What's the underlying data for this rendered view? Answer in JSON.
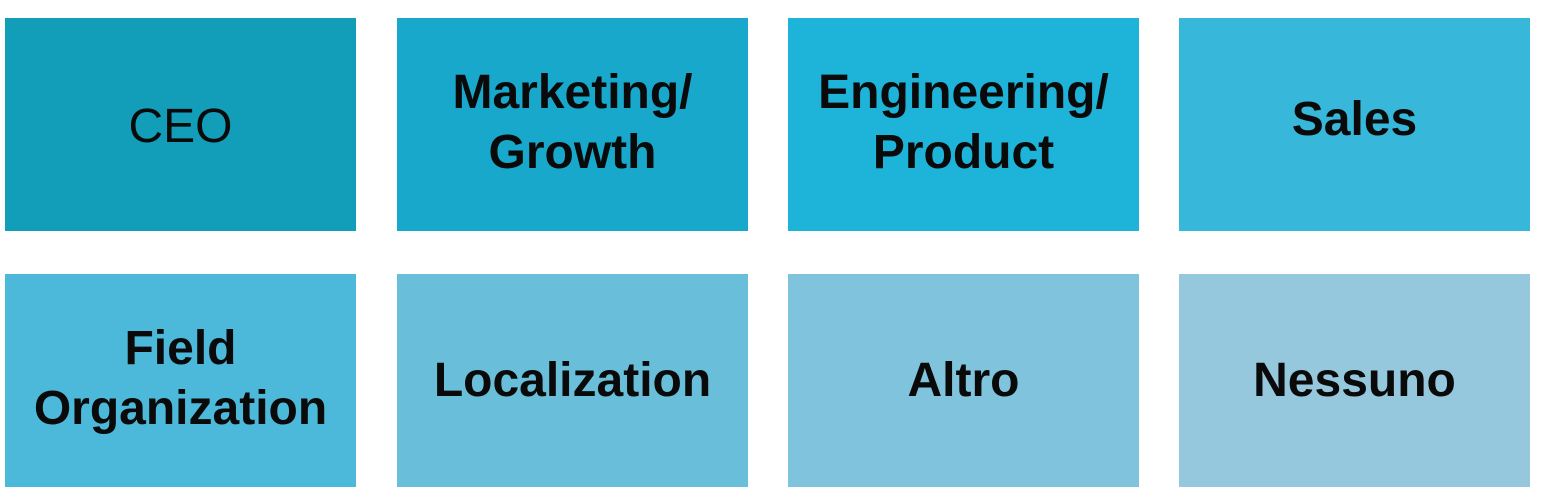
{
  "tiles": [
    {
      "label": "CEO",
      "color": "#129db9"
    },
    {
      "label": "Marketing/\nGrowth",
      "color": "#18a8cb"
    },
    {
      "label": "Engineering/\nProduct",
      "color": "#1eb3d8"
    },
    {
      "label": "Sales",
      "color": "#37b8da"
    },
    {
      "label": "Field\nOrganization",
      "color": "#4db9da"
    },
    {
      "label": "Localization",
      "color": "#69bfd9"
    },
    {
      "label": "Altro",
      "color": "#80c3dc"
    },
    {
      "label": "Nessuno",
      "color": "#96c8dd"
    }
  ]
}
